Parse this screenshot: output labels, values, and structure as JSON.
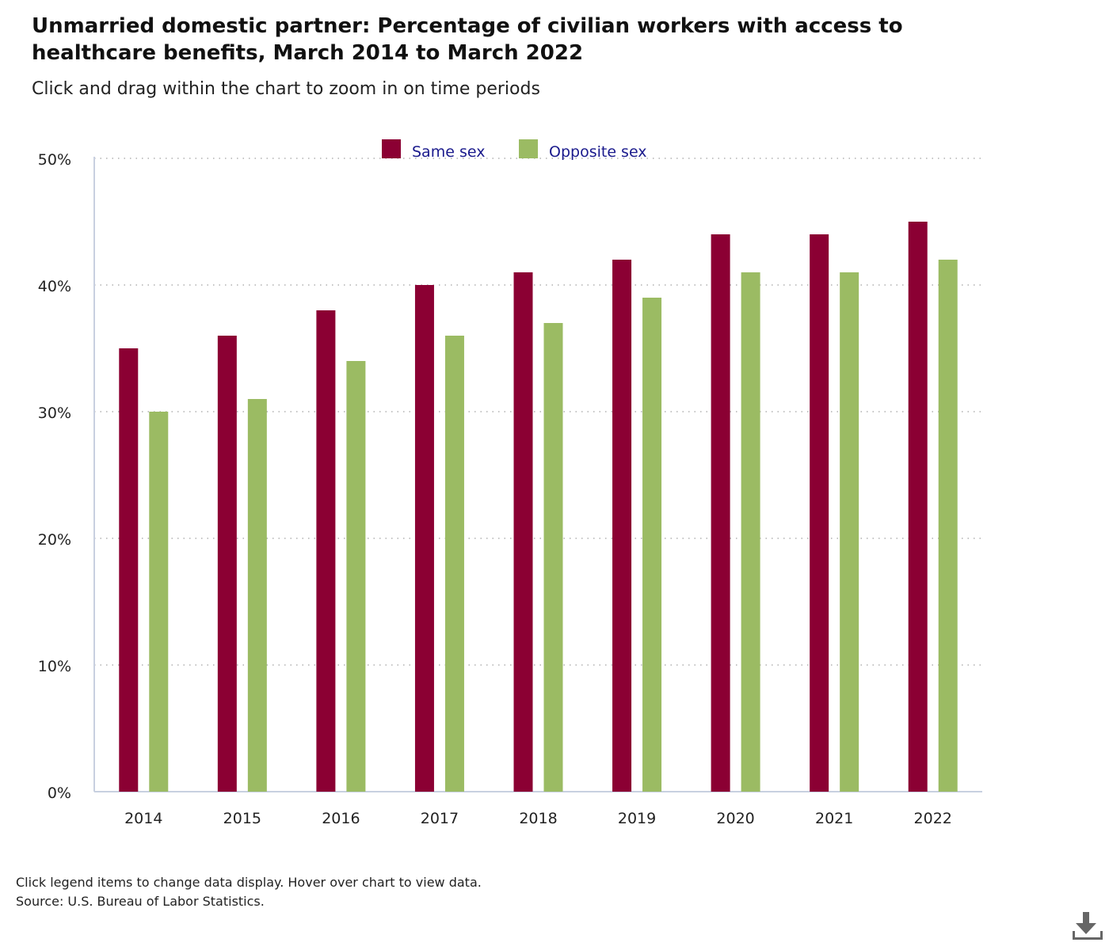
{
  "header": {
    "title": "Unmarried domestic partner: Percentage of civilian workers with access to healthcare benefits, March 2014 to March 2022",
    "subtitle": "Click and drag within the chart to zoom in on time periods"
  },
  "footer": {
    "note": "Click legend items to change data display. Hover over chart to view data.",
    "source": "Source: U.S. Bureau of Labor Statistics."
  },
  "icons": {
    "download": "download-icon"
  },
  "colors": {
    "same_sex": "#8b0033",
    "opposite_sex": "#9bbb63",
    "legend_text": "#1a1a8c",
    "axis": "#c8d0e0",
    "grid": "#b0b0b0"
  },
  "chart_data": {
    "type": "bar",
    "title": "Unmarried domestic partner: Percentage of civilian workers with access to healthcare benefits, March 2014 to March 2022",
    "categories": [
      "2014",
      "2015",
      "2016",
      "2017",
      "2018",
      "2019",
      "2020",
      "2021",
      "2022"
    ],
    "series": [
      {
        "name": "Same sex",
        "values": [
          35,
          36,
          38,
          40,
          41,
          42,
          44,
          44,
          45
        ]
      },
      {
        "name": "Opposite sex",
        "values": [
          30,
          31,
          34,
          36,
          37,
          39,
          41,
          41,
          42
        ]
      }
    ],
    "ylim": [
      0,
      50
    ],
    "yticks": [
      "0%",
      "10%",
      "20%",
      "30%",
      "40%",
      "50%"
    ],
    "grid": true,
    "legend_position": "top-center"
  }
}
